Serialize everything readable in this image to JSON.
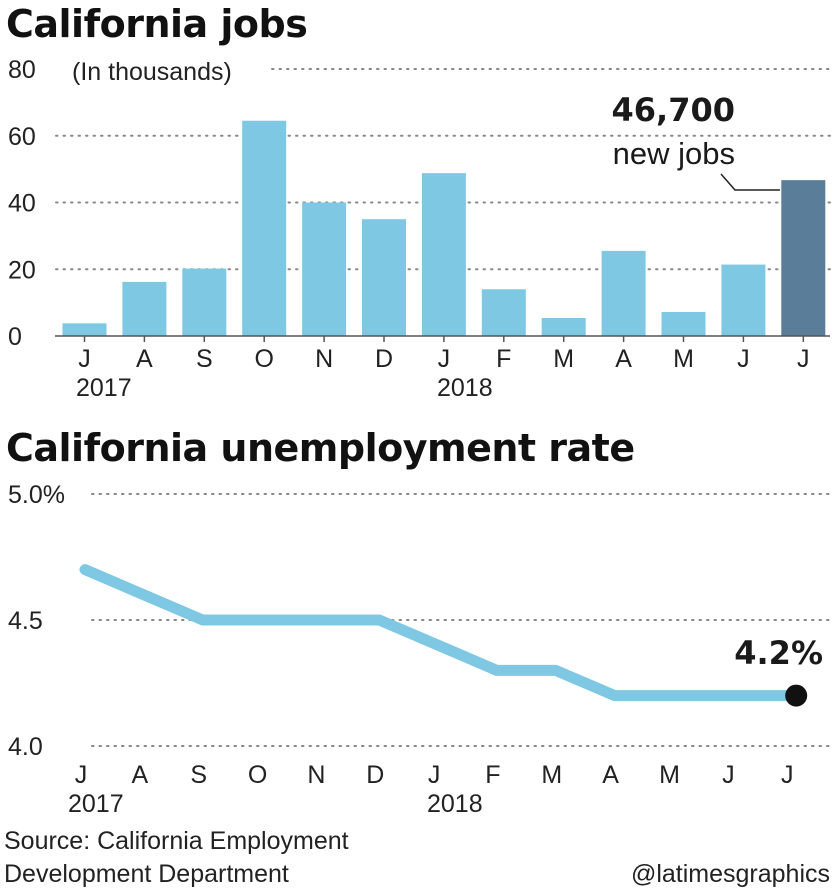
{
  "chart_data": [
    {
      "type": "bar",
      "title": "California jobs",
      "ylabel": "(In thousands)",
      "ylim": [
        0,
        80
      ],
      "yticks": [
        0,
        20,
        40,
        60,
        80
      ],
      "categories": [
        "J",
        "A",
        "S",
        "O",
        "N",
        "D",
        "J",
        "F",
        "M",
        "A",
        "M",
        "J",
        "J"
      ],
      "year_labels": [
        "2017",
        "2018"
      ],
      "values": [
        3.8,
        16.2,
        20.2,
        64.5,
        40.0,
        35.0,
        48.8,
        14.0,
        5.4,
        25.5,
        7.2,
        21.4,
        46.7
      ],
      "highlight_index": 12,
      "annotation": {
        "value": "46,700",
        "text": "new jobs"
      },
      "grid": true,
      "colors": {
        "bar": "#7ec8e3",
        "highlight": "#5a7d9a"
      }
    },
    {
      "type": "line",
      "title": "California unemployment rate",
      "ylim": [
        4.0,
        5.0
      ],
      "yticks": [
        "4.0",
        "4.5",
        "5.0%"
      ],
      "categories": [
        "J",
        "A",
        "S",
        "O",
        "N",
        "D",
        "J",
        "F",
        "M",
        "A",
        "M",
        "J",
        "J"
      ],
      "year_labels": [
        "2017",
        "2018"
      ],
      "values": [
        4.7,
        4.6,
        4.5,
        4.5,
        4.5,
        4.5,
        4.4,
        4.3,
        4.3,
        4.2,
        4.2,
        4.2,
        4.2
      ],
      "end_label": "4.2%",
      "grid": true,
      "colors": {
        "line": "#7ec8e3",
        "dot": "#111111"
      }
    }
  ],
  "footer": {
    "source_line1": "Source: California Employment",
    "source_line2": "Development Department",
    "credit": "@latimesgraphics"
  }
}
